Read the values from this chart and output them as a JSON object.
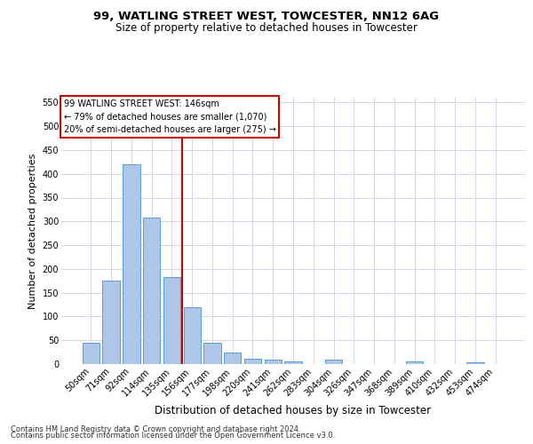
{
  "title_line1": "99, WATLING STREET WEST, TOWCESTER, NN12 6AG",
  "title_line2": "Size of property relative to detached houses in Towcester",
  "xlabel": "Distribution of detached houses by size in Towcester",
  "ylabel": "Number of detached properties",
  "categories": [
    "50sqm",
    "71sqm",
    "92sqm",
    "114sqm",
    "135sqm",
    "156sqm",
    "177sqm",
    "198sqm",
    "220sqm",
    "241sqm",
    "262sqm",
    "283sqm",
    "304sqm",
    "326sqm",
    "347sqm",
    "368sqm",
    "389sqm",
    "410sqm",
    "432sqm",
    "453sqm",
    "474sqm"
  ],
  "values": [
    44,
    175,
    420,
    308,
    183,
    120,
    45,
    25,
    12,
    10,
    5,
    0,
    10,
    0,
    0,
    0,
    5,
    0,
    0,
    3,
    0
  ],
  "bar_color": "#aec6e8",
  "bar_edgecolor": "#5a9fd4",
  "vline_position": 4.5,
  "vline_color": "#cc0000",
  "ylim_min": 0,
  "ylim_max": 560,
  "yticks": [
    0,
    50,
    100,
    150,
    200,
    250,
    300,
    350,
    400,
    450,
    500,
    550
  ],
  "annotation_title": "99 WATLING STREET WEST: 146sqm",
  "annotation_line1": "← 79% of detached houses are smaller (1,070)",
  "annotation_line2": "20% of semi-detached houses are larger (275) →",
  "annotation_box_facecolor": "#ffffff",
  "annotation_box_edgecolor": "#cc0000",
  "footer_line1": "Contains HM Land Registry data © Crown copyright and database right 2024.",
  "footer_line2": "Contains public sector information licensed under the Open Government Licence v3.0.",
  "bg_color": "#ffffff",
  "grid_color": "#d0d8e8",
  "title_fontsize": 9.5,
  "subtitle_fontsize": 8.5,
  "ylabel_fontsize": 8,
  "xlabel_fontsize": 8.5,
  "tick_fontsize": 7,
  "annotation_fontsize": 7,
  "footer_fontsize": 6
}
